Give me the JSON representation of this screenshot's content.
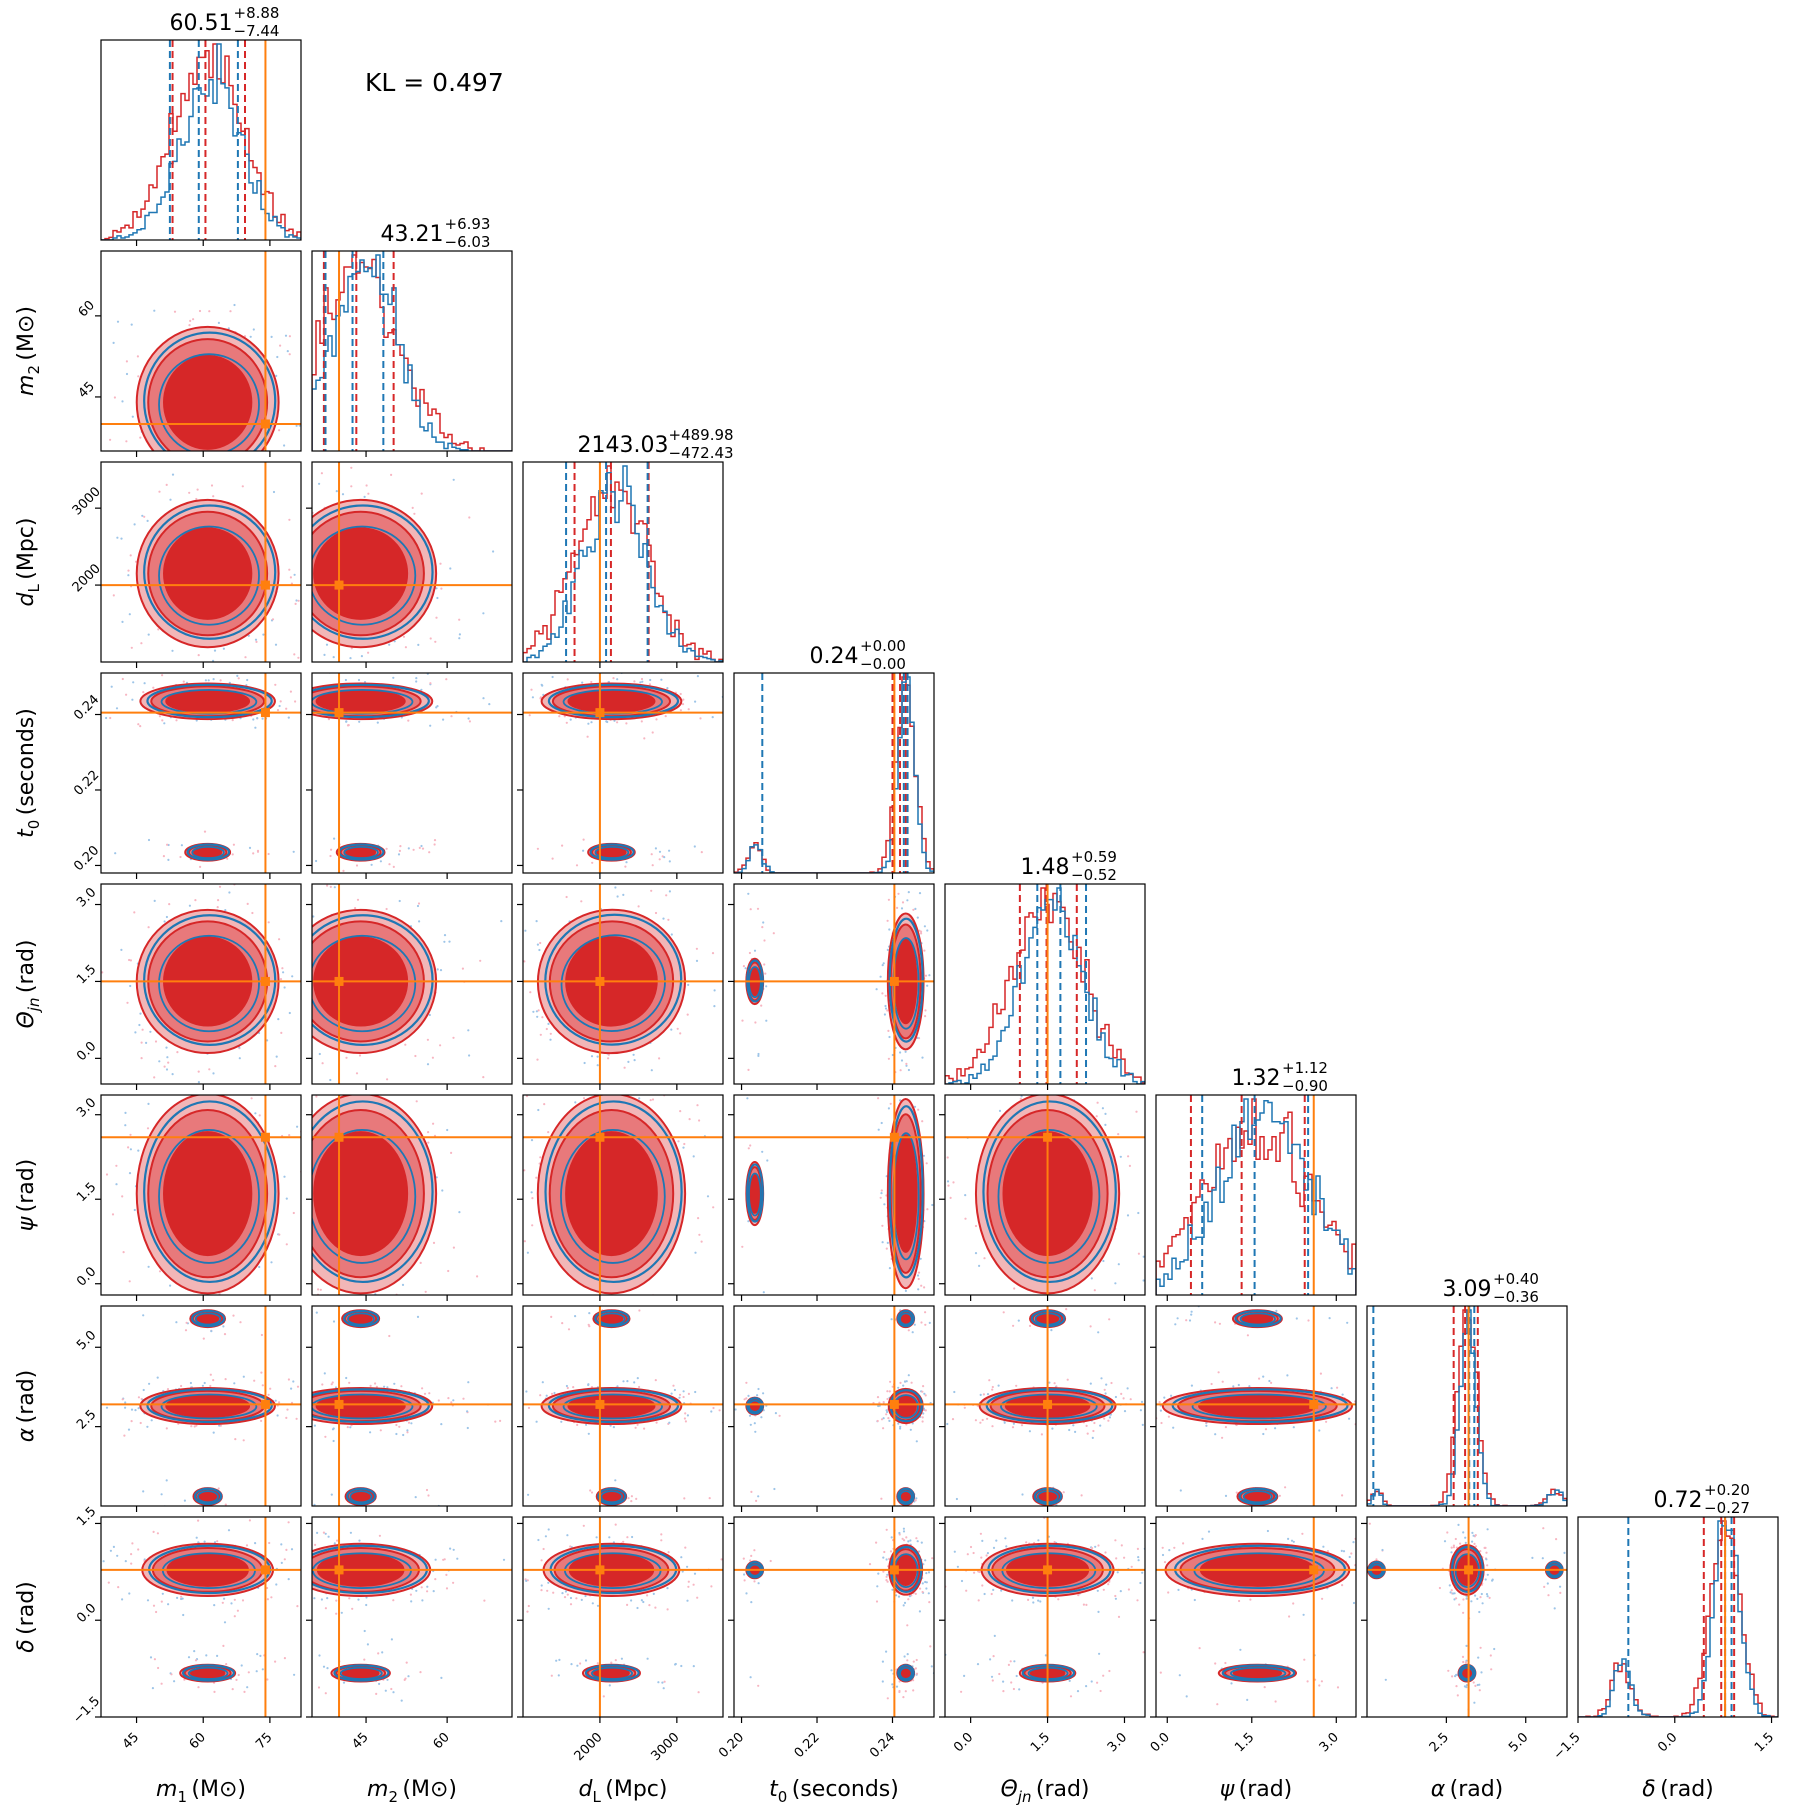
{
  "kl_text": "KL = 0.497",
  "colors": {
    "red": "#d62728",
    "red_light": "#f2b6b7",
    "red_mid": "#e8797b",
    "blue": "#1f77b4",
    "orange": "#ff7f0e",
    "scatter_red": "#f7b6c2",
    "scatter_blue": "#9ec5e8"
  },
  "chart_data": {
    "type": "scatter",
    "title": "",
    "parameters": [
      {
        "key": "m1",
        "axis_label": "m1 (M⊙)",
        "label_main": "m",
        "label_sub": "1",
        "label_unit": "(M⊙)",
        "range": [
          37,
          82
        ],
        "ticks": [
          45,
          60,
          75
        ],
        "truth": 74,
        "summary": {
          "median": "60.51",
          "plus": "+8.88",
          "minus": "−7.44"
        },
        "q_red": [
          53.1,
          60.5,
          69.4
        ],
        "q_blue": [
          52.5,
          59.0,
          67.8
        ]
      },
      {
        "key": "m2",
        "axis_label": "m2 (M⊙)",
        "label_main": "m",
        "label_sub": "2",
        "label_unit": "(M⊙)",
        "range": [
          35,
          72
        ],
        "ticks": [
          45,
          60
        ],
        "truth": 40,
        "summary": {
          "median": "43.21",
          "plus": "+6.93",
          "minus": "−6.03"
        },
        "q_red": [
          37.2,
          43.2,
          50.1
        ],
        "q_blue": [
          37.5,
          42.5,
          48.2
        ]
      },
      {
        "key": "dL",
        "axis_label": "dL (Mpc)",
        "label_main": "d",
        "label_sub": "L",
        "label_unit": "(Mpc)",
        "range": [
          1000,
          3600
        ],
        "ticks": [
          2000,
          3000
        ],
        "truth": 2000,
        "summary": {
          "median": "2143.03",
          "plus": "+489.98",
          "minus": "−472.43"
        },
        "q_red": [
          1670,
          2143,
          2633
        ],
        "q_blue": [
          1560,
          2080,
          2620
        ]
      },
      {
        "key": "t0",
        "axis_label": "t0 (seconds)",
        "label_main": "t",
        "label_sub": "0",
        "label_unit": "(seconds)",
        "range": [
          0.198,
          0.251
        ],
        "ticks": [
          0.2,
          0.22,
          0.24
        ],
        "tick_labels": [
          "0.20",
          "0.22",
          "0.24"
        ],
        "truth": 0.2405,
        "summary": {
          "median": "0.24",
          "plus": "+0.00",
          "minus": "−0.00"
        },
        "q_red": [
          0.24,
          0.242,
          0.2435
        ],
        "q_blue": [
          0.2055,
          0.243,
          0.244
        ]
      },
      {
        "key": "theta_jn",
        "axis_label": "Θjn (rad)",
        "label_main": "Θ",
        "label_sub": "jn",
        "label_unit": "(rad)",
        "range": [
          -0.5,
          3.4
        ],
        "ticks": [
          0.0,
          1.5,
          3.0
        ],
        "tick_labels": [
          "0.0",
          "1.5",
          "3.0"
        ],
        "truth": 1.5,
        "summary": {
          "median": "1.48",
          "plus": "+0.59",
          "minus": "−0.52"
        },
        "q_red": [
          0.96,
          1.48,
          2.07
        ],
        "q_blue": [
          1.3,
          1.75,
          2.25
        ]
      },
      {
        "key": "psi",
        "axis_label": "ψ (rad)",
        "label_main": "ψ",
        "label_sub": "",
        "label_unit": "(rad)",
        "range": [
          -0.2,
          3.35
        ],
        "ticks": [
          0.0,
          1.5,
          3.0
        ],
        "tick_labels": [
          "0.0",
          "1.5",
          "3.0"
        ],
        "truth": 2.6,
        "summary": {
          "median": "1.32",
          "plus": "+1.12",
          "minus": "−0.90"
        },
        "q_red": [
          0.42,
          1.32,
          2.44
        ],
        "q_blue": [
          0.62,
          1.55,
          2.5
        ]
      },
      {
        "key": "alpha",
        "axis_label": "α (rad)",
        "label_main": "α",
        "label_sub": "",
        "label_unit": "(rad)",
        "range": [
          0.0,
          6.3
        ],
        "ticks": [
          2.5,
          5.0
        ],
        "tick_labels": [
          "2.5",
          "5.0"
        ],
        "truth": 3.2,
        "summary": {
          "median": "3.09",
          "plus": "+0.40",
          "minus": "−0.36"
        },
        "q_red": [
          2.73,
          3.09,
          3.49
        ],
        "q_blue": [
          0.2,
          3.22,
          3.38
        ]
      },
      {
        "key": "delta",
        "axis_label": "δ (rad)",
        "label_main": "δ",
        "label_sub": "",
        "label_unit": "(rad)",
        "range": [
          -1.5,
          1.6
        ],
        "ticks": [
          -1.5,
          0.0,
          1.5
        ],
        "tick_labels": [
          "−1.5",
          "0.0",
          "1.5"
        ],
        "truth": 0.78,
        "summary": {
          "median": "0.72",
          "plus": "+0.20",
          "minus": "−0.27"
        },
        "q_red": [
          0.45,
          0.72,
          0.92
        ],
        "q_blue": [
          -0.72,
          0.78,
          0.88
        ]
      }
    ],
    "series": [
      {
        "color": "red",
        "style": "filled contours with 1D step histograms"
      },
      {
        "color": "blue",
        "style": "line contours with 1D step histograms"
      }
    ],
    "truth_color": "orange",
    "grid": false,
    "legend": "none"
  }
}
